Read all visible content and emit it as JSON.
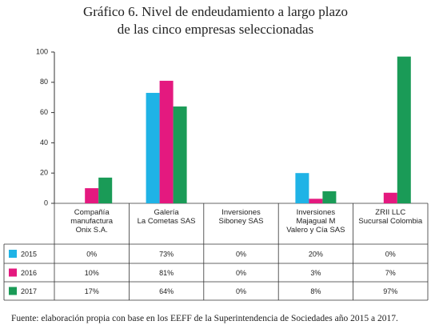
{
  "chart_data": {
    "type": "bar",
    "title": "Gráfico 6. Nivel de endeudamiento a largo plazo\nde las cinco empresas seleccionadas",
    "categories": [
      "Compañía\nmanufactura\nOnix S.A.",
      "Galería\nLa Cometas SAS",
      "Inversiones\nSiboney SAS",
      "Inversiones\nMajagual M\nValero y Cía SAS",
      "ZRII LLC\nSucursal Colombia"
    ],
    "series": [
      {
        "name": "2015",
        "color": "#1fb3e6",
        "values": [
          0,
          73,
          0,
          20,
          0
        ],
        "value_labels": [
          "0%",
          "73%",
          "0%",
          "20%",
          "0%"
        ]
      },
      {
        "name": "2016",
        "color": "#e4197f",
        "values": [
          10,
          81,
          0,
          3,
          7
        ],
        "value_labels": [
          "10%",
          "81%",
          "0%",
          "3%",
          "7%"
        ]
      },
      {
        "name": "2017",
        "color": "#1a9b57",
        "values": [
          17,
          64,
          0,
          8,
          97
        ],
        "value_labels": [
          "17%",
          "64%",
          "0%",
          "8%",
          "97%"
        ]
      }
    ],
    "ylim": [
      0,
      100
    ],
    "yticks": [
      0,
      20,
      40,
      60,
      80,
      100
    ],
    "source": "Fuente: elaboración propia con base en los EEFF de la Superintendencia de Sociedades año 2015 a 2017."
  }
}
